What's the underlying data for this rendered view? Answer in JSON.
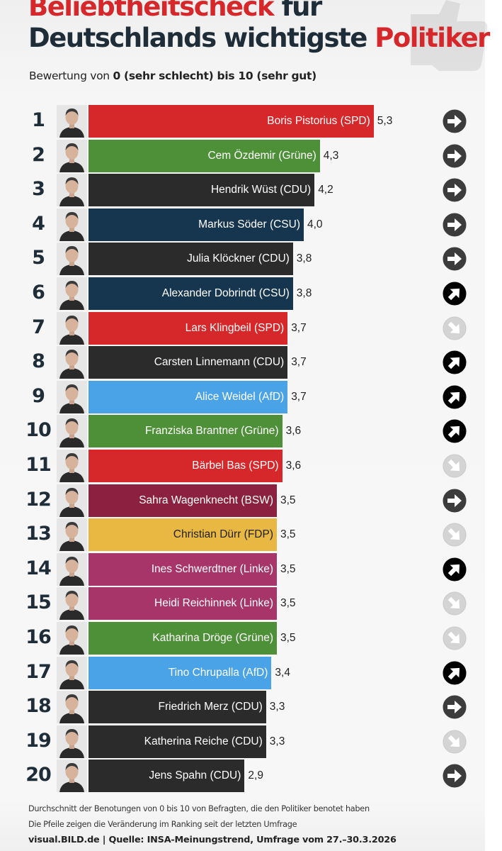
{
  "title": {
    "line1_part1": "Beliebtheitscheck",
    "line1_part2": "für",
    "line2_part1": "Deutschlands wichtigste",
    "line2_part2": "Politiker"
  },
  "subtitle": {
    "prefix": "Bewertung von ",
    "bold": "0 (sehr schlecht) bis 10 (sehr gut)"
  },
  "colors": {
    "SPD": "#d6272a",
    "Grüne": "#4e9038",
    "CDU": "#2b2b2b",
    "CSU": "#16354f",
    "AfD": "#4aa3e6",
    "BSW": "#8c2040",
    "FDP": "#e8b843",
    "Linke": "#a8356a",
    "title_red": "#d6272a",
    "title_dark": "#1f2d38"
  },
  "chart_data": {
    "type": "bar",
    "orientation": "horizontal",
    "value_range": [
      0,
      10
    ],
    "rows": [
      {
        "rank": "1",
        "label": "Boris Pistorius (SPD)",
        "party": "SPD",
        "value": 5.3,
        "value_label": "5,3",
        "trend": "same"
      },
      {
        "rank": "2",
        "label": "Cem Özdemir (Grüne)",
        "party": "Grüne",
        "value": 4.3,
        "value_label": "4,3",
        "trend": "same"
      },
      {
        "rank": "3",
        "label": "Hendrik Wüst (CDU)",
        "party": "CDU",
        "value": 4.2,
        "value_label": "4,2",
        "trend": "same"
      },
      {
        "rank": "4",
        "label": "Markus Söder (CSU)",
        "party": "CSU",
        "value": 4.0,
        "value_label": "4,0",
        "trend": "same"
      },
      {
        "rank": "5",
        "label": "Julia Klöckner (CDU)",
        "party": "CDU",
        "value": 3.8,
        "value_label": "3,8",
        "trend": "same"
      },
      {
        "rank": "6",
        "label": "Alexander Dobrindt (CSU)",
        "party": "CSU",
        "value": 3.8,
        "value_label": "3,8",
        "trend": "up"
      },
      {
        "rank": "7",
        "label": "Lars Klingbeil (SPD)",
        "party": "SPD",
        "value": 3.7,
        "value_label": "3,7",
        "trend": "down"
      },
      {
        "rank": "8",
        "label": "Carsten Linnemann (CDU)",
        "party": "CDU",
        "value": 3.7,
        "value_label": "3,7",
        "trend": "up"
      },
      {
        "rank": "9",
        "label": "Alice Weidel (AfD)",
        "party": "AfD",
        "value": 3.7,
        "value_label": "3,7",
        "trend": "up"
      },
      {
        "rank": "10",
        "label": "Franziska Brantner (Grüne)",
        "party": "Grüne",
        "value": 3.6,
        "value_label": "3,6",
        "trend": "up"
      },
      {
        "rank": "11",
        "label": "Bärbel Bas (SPD)",
        "party": "SPD",
        "value": 3.6,
        "value_label": "3,6",
        "trend": "down"
      },
      {
        "rank": "12",
        "label": "Sahra Wagenknecht (BSW)",
        "party": "BSW",
        "value": 3.5,
        "value_label": "3,5",
        "trend": "same"
      },
      {
        "rank": "13",
        "label": "Christian Dürr (FDP)",
        "party": "FDP",
        "value": 3.5,
        "value_label": "3,5",
        "trend": "down"
      },
      {
        "rank": "14",
        "label": "Ines Schwerdtner (Linke)",
        "party": "Linke",
        "value": 3.5,
        "value_label": "3,5",
        "trend": "up"
      },
      {
        "rank": "15",
        "label": "Heidi Reichinnek (Linke)",
        "party": "Linke",
        "value": 3.5,
        "value_label": "3,5",
        "trend": "down"
      },
      {
        "rank": "16",
        "label": "Katharina Dröge (Grüne)",
        "party": "Grüne",
        "value": 3.5,
        "value_label": "3,5",
        "trend": "down"
      },
      {
        "rank": "17",
        "label": "Tino Chrupalla (AfD)",
        "party": "AfD",
        "value": 3.4,
        "value_label": "3,4",
        "trend": "up"
      },
      {
        "rank": "18",
        "label": "Friedrich Merz (CDU)",
        "party": "CDU",
        "value": 3.3,
        "value_label": "3,3",
        "trend": "same"
      },
      {
        "rank": "19",
        "label": "Katherina Reiche (CDU)",
        "party": "CDU",
        "value": 3.3,
        "value_label": "3,3",
        "trend": "down"
      },
      {
        "rank": "20",
        "label": "Jens Spahn (CDU)",
        "party": "CDU",
        "value": 2.9,
        "value_label": "2,9",
        "trend": "same"
      }
    ]
  },
  "footer": {
    "note1": "Durchschnitt der Benotungen von 0 bis 10 von Befragten, die den Politiker benotet haben",
    "note2": "Die Pfeile zeigen die Veränderung im Ranking seit der letzten Umfrage",
    "source": "visual.BILD.de | Quelle: INSA-Meinungstrend, Umfrage vom 27.–30.3.2026"
  }
}
